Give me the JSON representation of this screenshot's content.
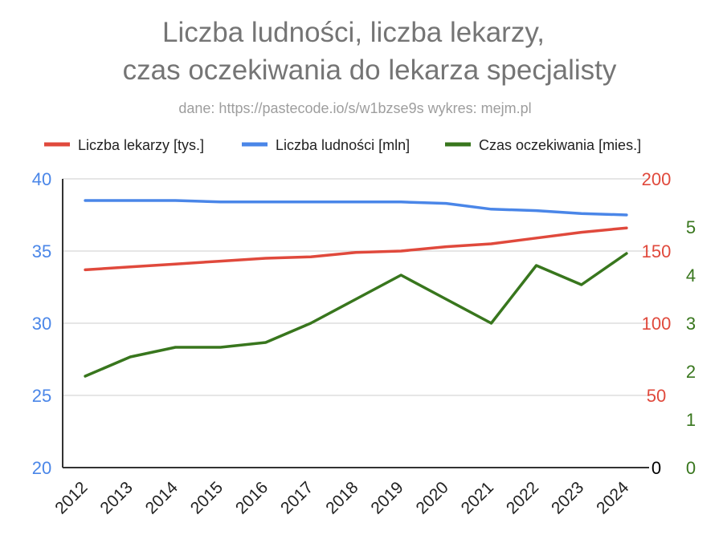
{
  "chart_data": {
    "type": "line",
    "title_line1": "Liczba ludności, liczba lekarzy,",
    "title_line2": "czas oczekiwania do lekarza specjalisty",
    "subtitle": "dane: https://pastecode.io/s/w1bzse9s wykres: mejm.pl",
    "categories": [
      "2012",
      "2013",
      "2014",
      "2015",
      "2016",
      "2017",
      "2018",
      "2019",
      "2020",
      "2021",
      "2022",
      "2023",
      "2024"
    ],
    "left_axis": {
      "min": 20,
      "max": 40,
      "ticks": [
        "20",
        "25",
        "30",
        "35",
        "40"
      ],
      "color": "#4a86e8"
    },
    "right_axis_red": {
      "min": 0,
      "max": 200,
      "ticks": [
        "0",
        "50",
        "100",
        "150",
        "200"
      ],
      "color": "#e0493c",
      "zero_color": "#000000"
    },
    "right_axis_green": {
      "min": 0,
      "max": 6,
      "ticks": [
        "0",
        "1",
        "2",
        "3",
        "4",
        "5"
      ],
      "color": "#38761d"
    },
    "series": [
      {
        "name": "Liczba lekarzy [tys.]",
        "axis": "right_red",
        "color": "#e0493c",
        "values": [
          137,
          139,
          141,
          143,
          145,
          146,
          149,
          150,
          153,
          155,
          159,
          163,
          166
        ]
      },
      {
        "name": "Liczba ludności [mln]",
        "axis": "left",
        "color": "#4a86e8",
        "values": [
          38.5,
          38.5,
          38.5,
          38.4,
          38.4,
          38.4,
          38.4,
          38.4,
          38.3,
          37.9,
          37.8,
          37.6,
          37.5
        ]
      },
      {
        "name": "Czas oczekiwania [mies.]",
        "axis": "right_green",
        "color": "#38761d",
        "values": [
          1.9,
          2.3,
          2.5,
          2.5,
          2.6,
          3.0,
          3.5,
          4.0,
          3.5,
          3.0,
          4.2,
          3.8,
          4.45
        ]
      }
    ]
  }
}
